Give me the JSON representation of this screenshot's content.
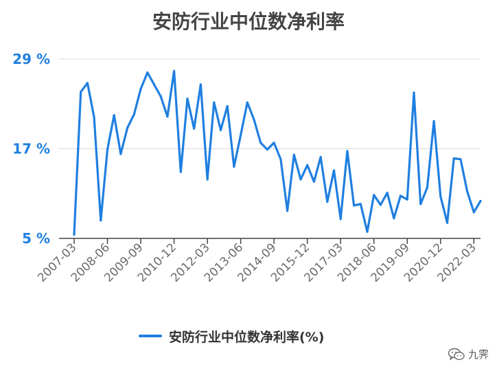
{
  "colors": {
    "series": "#1f7fe0",
    "ytick": "#1f7fe0",
    "axis": "#444444",
    "grid": "#d9d9d9"
  },
  "watermark": {
    "text": "九霁",
    "icon": "wechat-icon"
  },
  "chart_data": {
    "type": "line",
    "title": "安防行业中位数净利率",
    "xlabel": "",
    "ylabel": "",
    "yticks": [
      5,
      17,
      29
    ],
    "ytick_labels": [
      "5 %",
      "17 %",
      "29 %"
    ],
    "ylim": [
      5,
      29
    ],
    "grid": true,
    "legend_position": "bottom",
    "xtick_labels": [
      "2007-03",
      "2008-06",
      "2009-09",
      "2010-12",
      "2012-03",
      "2013-06",
      "2014-09",
      "2015-12",
      "2017-03",
      "2018-06",
      "2019-09",
      "2020-12",
      "2022-03"
    ],
    "xtick_indices": [
      0,
      5,
      10,
      15,
      20,
      25,
      30,
      35,
      40,
      45,
      50,
      55,
      60
    ],
    "series": [
      {
        "name": "安防行业中位数净利率(%)",
        "values": [
          5.5,
          24.6,
          25.8,
          21.2,
          7.4,
          16.9,
          21.5,
          16.3,
          19.8,
          21.6,
          25.0,
          27.2,
          25.6,
          24.0,
          21.3,
          27.4,
          13.9,
          23.7,
          19.7,
          25.6,
          12.9,
          23.2,
          19.5,
          22.7,
          14.6,
          18.8,
          23.2,
          20.9,
          17.8,
          16.9,
          17.8,
          15.6,
          8.7,
          16.2,
          12.9,
          14.8,
          12.6,
          15.9,
          9.9,
          14.1,
          7.6,
          16.7,
          9.4,
          9.6,
          5.9,
          10.8,
          9.5,
          11.1,
          7.7,
          10.7,
          10.2,
          24.5,
          9.6,
          11.8,
          20.7,
          10.6,
          7.1,
          15.7,
          15.6,
          11.3,
          8.5,
          10.0
        ]
      }
    ]
  }
}
